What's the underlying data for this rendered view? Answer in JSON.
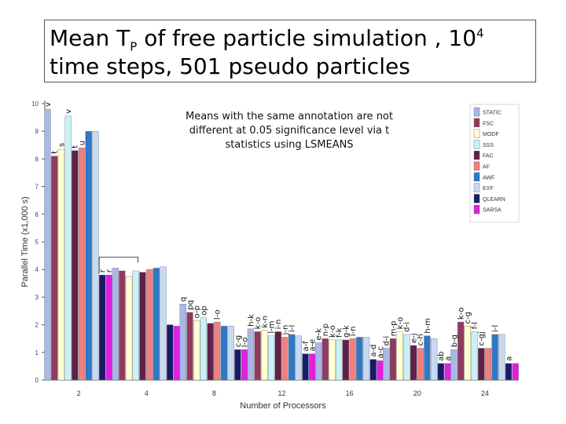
{
  "title": {
    "line1_pre": "Mean T",
    "line1_sub": "P",
    "line1_mid": " of free particle simulation , 10",
    "line1_sup": "4",
    "line2": "time steps, 501 pseudo particles"
  },
  "chart_data": {
    "type": "bar",
    "title": "Mean TP of free particle simulation , 10^4 time steps, 501 pseudo particles",
    "annotation": "Means with the same annotation are not different at 0.05 significance level via t statistics using LSMEANS",
    "xlabel": "Number of Processors",
    "ylabel": "Parallel Time (x1,000 s)",
    "ylim": [
      0,
      10
    ],
    "yticks": [
      "0",
      "1",
      "2",
      "3",
      "4",
      "5",
      "6",
      "7",
      "8",
      "9",
      "10"
    ],
    "categories": [
      "2",
      "4",
      "8",
      "12",
      "16",
      "20",
      "24"
    ],
    "legend_position": "right",
    "grid": false,
    "series": [
      {
        "name": "STATIC",
        "color": "#a9b8e8",
        "values": [
          9.8,
          4.05,
          2.75,
          1.85,
          1.35,
          1.15,
          1.1
        ]
      },
      {
        "name": "FSC",
        "color": "#903a60",
        "values": [
          8.1,
          3.95,
          2.45,
          1.75,
          1.5,
          1.5,
          2.1
        ]
      },
      {
        "name": "MODF",
        "color": "#ffffd0",
        "values": [
          8.35,
          3.75,
          2.15,
          1.8,
          1.45,
          1.75,
          1.95
        ]
      },
      {
        "name": "SSS",
        "color": "#c8f2f8",
        "values": [
          9.55,
          3.95,
          2.25,
          1.6,
          1.45,
          1.65,
          1.75
        ]
      },
      {
        "name": "FAC",
        "color": "#60204a",
        "values": [
          8.3,
          3.9,
          2.05,
          1.75,
          1.45,
          1.25,
          1.15
        ]
      },
      {
        "name": "AF",
        "color": "#f08080",
        "values": [
          8.4,
          4.0,
          2.1,
          1.55,
          1.5,
          1.15,
          1.15
        ]
      },
      {
        "name": "AWF",
        "color": "#2f78c8",
        "values": [
          9.0,
          4.05,
          1.95,
          1.65,
          1.55,
          1.6,
          1.65
        ]
      },
      {
        "name": "EXF",
        "color": "#c6daf2",
        "values": [
          9.0,
          4.1,
          1.95,
          1.6,
          1.55,
          1.5,
          1.65
        ]
      },
      {
        "name": "QLEARN",
        "color": "#1a1a6a",
        "values": [
          3.8,
          2.0,
          1.1,
          0.95,
          0.75,
          0.6,
          0.6
        ]
      },
      {
        "name": "SARSA",
        "color": "#e020e0",
        "values": [
          3.8,
          1.95,
          1.1,
          0.95,
          0.7,
          0.6,
          0.6
        ]
      }
    ],
    "bar_labels": [
      [
        "v",
        "t",
        "s",
        "v",
        "t",
        "u",
        "",
        "",
        "r",
        "r"
      ],
      [
        "",
        "",
        "",
        "",
        "",
        "",
        "",
        "",
        "",
        ""
      ],
      [
        "q",
        "pq",
        "o-p",
        "op",
        "",
        "l-o",
        "",
        "",
        "c-g",
        "l-o"
      ],
      [
        "h-k",
        "k-o",
        "k-n",
        "l-m",
        "i-n",
        "j-n",
        "i-l",
        "",
        "a-f",
        "a-e"
      ],
      [
        "e-k",
        "n-p",
        "k-o",
        "f-k",
        "g-k",
        "i-n",
        "",
        "",
        "a-d",
        "a-c"
      ],
      [
        "d-i",
        "m-p",
        "k-o",
        "d-i",
        "e-j",
        "c-h",
        "h-m",
        "",
        "ab",
        "a"
      ],
      [
        "b-g",
        "k-o",
        "c-g",
        "f-l",
        "c-gj",
        "",
        "i-l",
        "",
        "a",
        ""
      ]
    ]
  },
  "legend": {
    "items": [
      "STATIC",
      "FSC",
      "MODF",
      "SSS",
      "FAC",
      "AF",
      "AWF",
      "EXF",
      "QLEARN",
      "SARSA"
    ]
  }
}
